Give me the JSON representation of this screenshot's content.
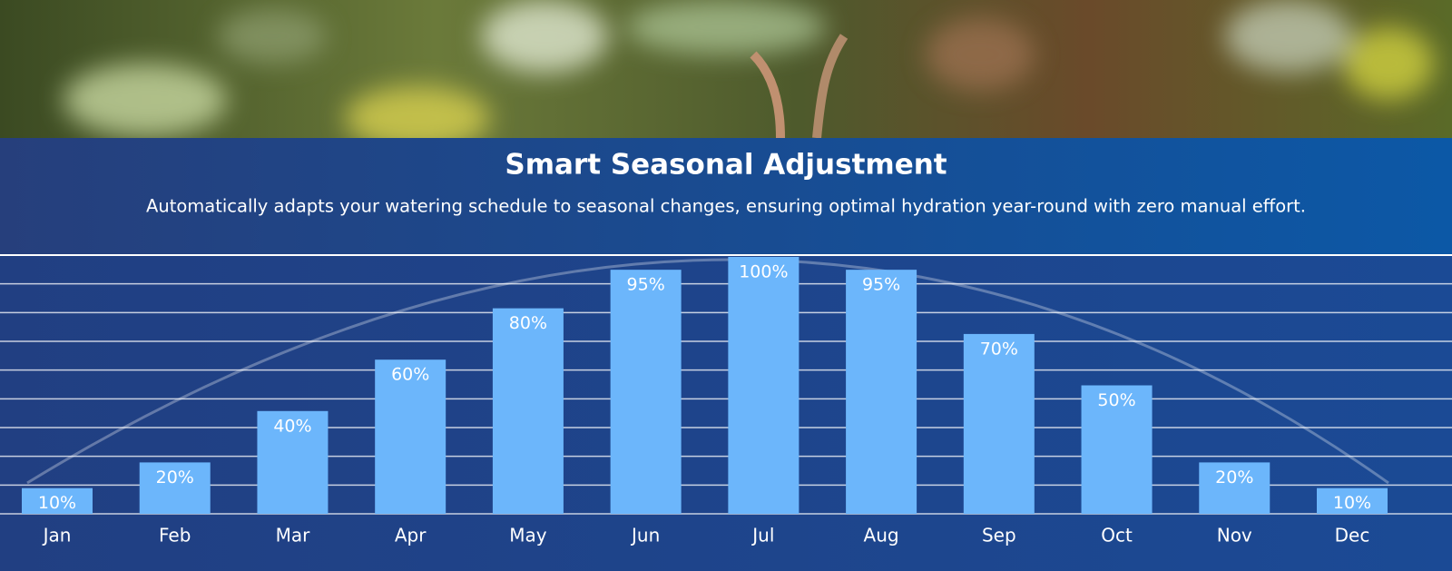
{
  "chart_data": {
    "type": "bar",
    "title": "Smart Seasonal Adjustment",
    "subtitle": "Automatically adapts your watering schedule to seasonal changes, ensuring optimal hydration year-round with zero manual effort.",
    "categories": [
      "Jan",
      "Feb",
      "Mar",
      "Apr",
      "May",
      "Jun",
      "Jul",
      "Aug",
      "Sep",
      "Oct",
      "Nov",
      "Dec"
    ],
    "values": [
      10,
      20,
      40,
      60,
      80,
      95,
      100,
      95,
      70,
      50,
      20,
      10
    ],
    "value_labels": [
      "10%",
      "20%",
      "40%",
      "60%",
      "80%",
      "95%",
      "100%",
      "95%",
      "70%",
      "50%",
      "20%",
      "10%"
    ],
    "color": "#6cb6fb",
    "ylim": [
      0,
      100
    ]
  }
}
